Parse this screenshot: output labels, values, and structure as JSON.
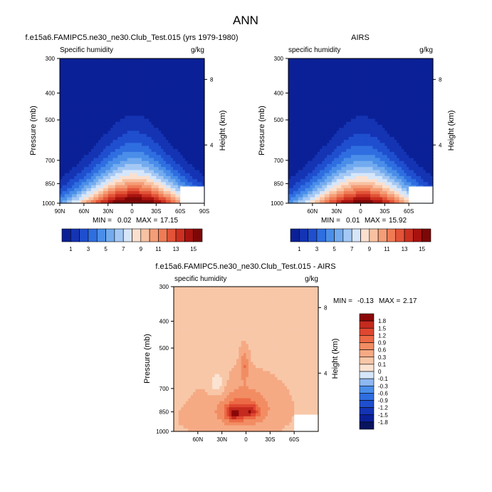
{
  "page_title": "ANN",
  "colors": {
    "positive": [
      "#fce2d0",
      "#fac4a4",
      "#f7a17c",
      "#f47f5a",
      "#ec5a3c",
      "#e03a25",
      "#c8201a",
      "#a80d0d",
      "#8a0707"
    ],
    "negative": [
      "#0b2096",
      "#1434b4",
      "#1f4fce",
      "#2f6ee0",
      "#4a8ee9",
      "#72abef",
      "#9cc4f4",
      "#c4dbf8",
      "#e6f0fc"
    ],
    "missing": "#ffffff"
  },
  "chart_data": [
    {
      "type": "heatmap",
      "title": "f.e15a6.FAMIPC5.ne30_ne30.Club_Test.015 (yrs 1979-1980)",
      "left_label": "Specific humidity",
      "right_label": "g/kg",
      "ylabel": "Pressure (mb)",
      "ylabel_right": "Height (km)",
      "y_ticks": [
        "300",
        "400",
        "500",
        "700",
        "850",
        "1000"
      ],
      "y_ticks_right": [
        "8",
        "4"
      ],
      "x_ticks": [
        "90N",
        "60N",
        "30N",
        "0",
        "30S",
        "60S",
        "90S"
      ],
      "stats": {
        "min_label": "MIN =",
        "min": "0.02",
        "max_label": "MAX =",
        "max": "17.15"
      },
      "xlim": [
        90,
        -90
      ],
      "colorbar": {
        "levels": [
          "1",
          "3",
          "5",
          "7",
          "9",
          "11",
          "13",
          "15"
        ],
        "n_colors": 16
      },
      "field": {
        "kind": "humidity",
        "peak_lat": 0,
        "peak_value": 17.15,
        "n_colors": 16,
        "cmax": 16
      }
    },
    {
      "type": "heatmap",
      "title": "AIRS",
      "left_label": "specific humidity",
      "right_label": "g/kg",
      "ylabel": "Pressure (mb)",
      "ylabel_right": "Height (km)",
      "y_ticks": [
        "300",
        "400",
        "500",
        "700",
        "850",
        "1000"
      ],
      "y_ticks_right": [
        "8",
        "4"
      ],
      "x_ticks": [
        "60N",
        "30N",
        "0",
        "30S",
        "60S"
      ],
      "stats": {
        "min_label": "MIN =",
        "min": "0.01",
        "max_label": "MAX =",
        "max": "15.92"
      },
      "xlim": [
        90,
        -90
      ],
      "colorbar": {
        "levels": [
          "1",
          "3",
          "5",
          "7",
          "9",
          "11",
          "13",
          "15"
        ],
        "n_colors": 16
      },
      "field": {
        "kind": "humidity",
        "peak_lat": 0,
        "peak_value": 15.92,
        "n_colors": 16,
        "cmax": 16
      }
    },
    {
      "type": "heatmap",
      "title": "f.e15a6.FAMIPC5.ne30_ne30.Club_Test.015 - AIRS",
      "left_label": "specific humidity",
      "right_label": "g/kg",
      "ylabel": "Pressure (mb)",
      "ylabel_right": "Height (km)",
      "y_ticks": [
        "300",
        "400",
        "500",
        "700",
        "850",
        "1000"
      ],
      "y_ticks_right": [
        "8",
        "4"
      ],
      "x_ticks": [
        "60N",
        "30N",
        "0",
        "30S",
        "60S"
      ],
      "stats": {
        "min_label": "MIN =",
        "min": "-0.13",
        "max_label": "MAX =",
        "max": "2.17"
      },
      "xlim": [
        90,
        -90
      ],
      "colorbar": {
        "levels": [
          "1.8",
          "1.5",
          "1.2",
          "0.9",
          "0.6",
          "0.3",
          "0.1",
          "0",
          "-0.1",
          "-0.3",
          "-0.6",
          "-0.9",
          "-1.2",
          "-1.5",
          "-1.8"
        ],
        "n_colors": 16
      },
      "field": {
        "kind": "difference",
        "peak_value": 2.17
      }
    }
  ]
}
